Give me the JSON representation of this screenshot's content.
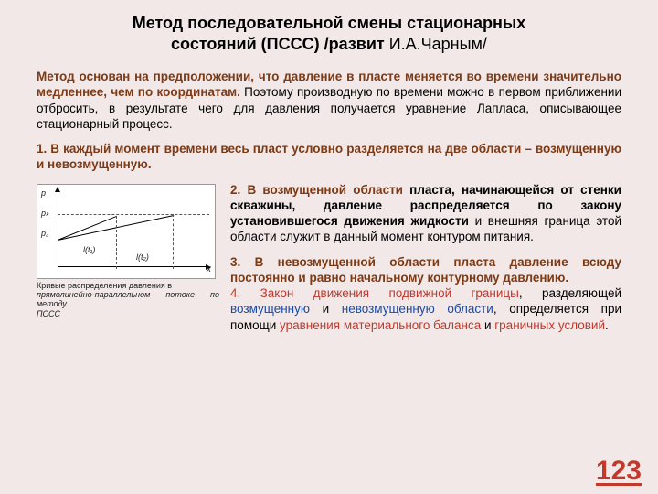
{
  "title": {
    "line1": "Метод последовательной смены стационарных",
    "line2_bold": "состояний (ПССС) /развит ",
    "line2_author": "И.А.Чарным/"
  },
  "intro": {
    "lead": "Метод основан на предположении, что давление в пласте меняется во времени значительно медленнее, чем по координатам.",
    "tail": " Поэтому производную по времени можно в первом приближении отбросить, в результате чего для давления получается уравнение Лапласа, описывающее стационарный процесс."
  },
  "point1": "1. В каждый момент времени весь пласт условно разделяется на две области – возмущенную и невозмущенную.",
  "point2": {
    "lead": "2. В возмущенной области",
    "mid": " пласта, начинающейся от стенки скважины, давление распределяется по закону установившегося движения жидкости",
    "tail": " и внешняя граница этой области служит в данный момент контуром питания."
  },
  "point3": {
    "lead": "3. ",
    "b1": "В невозмущенной области пласта давление всюду постоянно и равно начальному контурному давлению.",
    "rule_a": "4. Закон движения подвижной границы",
    "rule_b": ", разделяющей ",
    "rule_c": "возмущенную",
    "rule_d": " и ",
    "rule_e": "невозмущенную области",
    "rule_f": ", определяется при помощи ",
    "rule_g": "уравнения материального баланса",
    "rule_h": " и ",
    "rule_i": "граничных условий",
    "rule_j": "."
  },
  "figure": {
    "y_top": "p",
    "y_pk": "pₖ",
    "y_pc": "p꜀",
    "lt1": "l(t₁)",
    "lt2": "l(t₂)",
    "x_label": "x",
    "caption_a": "Кривые распределения давления в",
    "caption_b": "прямолинейно-параллельном потоке по методу",
    "caption_c": "ПССС"
  },
  "pagenum": "123",
  "colors": {
    "background": "#f2e8e8",
    "brown": "#7c3a15",
    "red": "#c0392b",
    "blue": "#1a4aa8"
  }
}
